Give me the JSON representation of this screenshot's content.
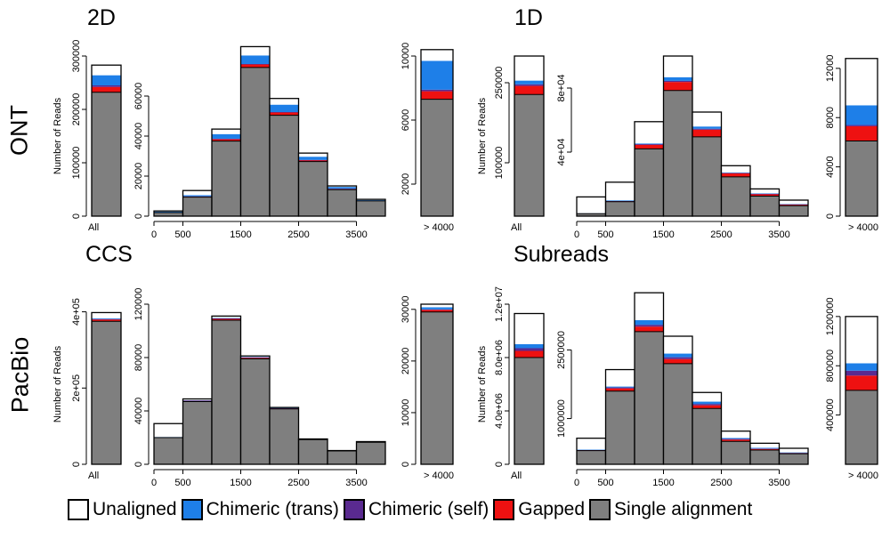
{
  "row_labels": [
    "ONT",
    "PacBio"
  ],
  "panel_titles": [
    "2D",
    "1D",
    "CCS",
    "Subreads"
  ],
  "legend": [
    {
      "label": "Unaligned",
      "color": "#ffffff"
    },
    {
      "label": "Chimeric (trans)",
      "color": "#1e7fe8"
    },
    {
      "label": "Chimeric (self)",
      "color": "#5a2a90"
    },
    {
      "label": "Gapped",
      "color": "#ee1111"
    },
    {
      "label": "Single alignment",
      "color": "#7f7f7f"
    }
  ],
  "chart_data": [
    {
      "panel": "2D",
      "row": "ONT",
      "type": "bar",
      "stacked": true,
      "ylabel": "Number of Reads",
      "subplots": [
        {
          "name": "all",
          "categories": [
            "All"
          ],
          "ylim": [
            0,
            300000
          ],
          "yticks": [
            "0",
            "100000",
            "200000",
            "300000"
          ],
          "bars": [
            {
              "single": 232000,
              "gapped": 10000,
              "chimeric_self": 3000,
              "chimeric_trans": 19000,
              "unaligned": 19000
            }
          ]
        },
        {
          "name": "length",
          "x_edges": [
            0,
            500,
            1000,
            1500,
            2000,
            2500,
            3000,
            3500,
            4000
          ],
          "xticks": [
            "0",
            "500",
            "1500",
            "2500",
            "3500"
          ],
          "ylim": [
            0,
            80000
          ],
          "yticks": [
            "0",
            "20000",
            "40000",
            "60000"
          ],
          "bars": [
            {
              "single": 1800,
              "gapped": 200,
              "chimeric_self": 0,
              "chimeric_trans": 300,
              "unaligned": 300
            },
            {
              "single": 9500,
              "gapped": 300,
              "chimeric_self": 100,
              "chimeric_trans": 600,
              "unaligned": 2300
            },
            {
              "single": 37500,
              "gapped": 900,
              "chimeric_self": 300,
              "chimeric_trans": 2300,
              "unaligned": 2500
            },
            {
              "single": 74300,
              "gapped": 1500,
              "chimeric_self": 200,
              "chimeric_trans": 4300,
              "unaligned": 4400
            },
            {
              "single": 50400,
              "gapped": 1400,
              "chimeric_self": 200,
              "chimeric_trans": 3700,
              "unaligned": 3100
            },
            {
              "single": 27300,
              "gapped": 700,
              "chimeric_self": 100,
              "chimeric_trans": 1600,
              "unaligned": 1800
            },
            {
              "single": 13200,
              "gapped": 400,
              "chimeric_self": 100,
              "chimeric_trans": 900,
              "unaligned": 500
            },
            {
              "single": 7600,
              "gapped": 200,
              "chimeric_self": 0,
              "chimeric_trans": 300,
              "unaligned": 300
            }
          ]
        },
        {
          "name": "long",
          "categories": [
            "> 4000"
          ],
          "ylim": [
            0,
            10000
          ],
          "yticks": [
            "2000",
            "6000",
            "10000"
          ],
          "bars": [
            {
              "single": 7300,
              "gapped": 500,
              "chimeric_self": 100,
              "chimeric_trans": 1800,
              "unaligned": 700
            }
          ]
        }
      ]
    },
    {
      "panel": "1D",
      "row": "ONT",
      "type": "bar",
      "stacked": true,
      "ylabel": "Number of Reads",
      "subplots": [
        {
          "name": "all",
          "categories": [
            "All"
          ],
          "ylim": [
            0,
            300000
          ],
          "yticks": [
            "100000",
            "250000"
          ],
          "bars": [
            {
              "single": 228000,
              "gapped": 16000,
              "chimeric_self": 3000,
              "chimeric_trans": 7000,
              "unaligned": 46000
            }
          ]
        },
        {
          "name": "length",
          "x_edges": [
            0,
            500,
            1000,
            1500,
            2000,
            2500,
            3000,
            3500,
            4000
          ],
          "xticks": [
            "0",
            "500",
            "1500",
            "2500",
            "3500"
          ],
          "ylim": [
            0,
            100000
          ],
          "yticks": [
            "4e+04",
            "8e+04"
          ],
          "bars": [
            {
              "single": 1500,
              "gapped": 200,
              "chimeric_self": 0,
              "chimeric_trans": 100,
              "unaligned": 10200
            },
            {
              "single": 9000,
              "gapped": 400,
              "chimeric_self": 100,
              "chimeric_trans": 400,
              "unaligned": 11300
            },
            {
              "single": 42000,
              "gapped": 2500,
              "chimeric_self": 500,
              "chimeric_trans": 400,
              "unaligned": 13600
            },
            {
              "single": 78500,
              "gapped": 5300,
              "chimeric_self": 700,
              "chimeric_trans": 2300,
              "unaligned": 13200
            },
            {
              "single": 49500,
              "gapped": 4500,
              "chimeric_self": 600,
              "chimeric_trans": 1400,
              "unaligned": 9000
            },
            {
              "single": 24500,
              "gapped": 2300,
              "chimeric_self": 200,
              "chimeric_trans": 300,
              "unaligned": 4200
            },
            {
              "single": 12500,
              "gapped": 1300,
              "chimeric_self": 100,
              "chimeric_trans": 300,
              "unaligned": 2800
            },
            {
              "single": 6500,
              "gapped": 800,
              "chimeric_self": 100,
              "chimeric_trans": 200,
              "unaligned": 2400
            }
          ]
        },
        {
          "name": "long",
          "categories": [
            "> 4000"
          ],
          "ylim": [
            0,
            13000
          ],
          "yticks": [
            "0",
            "4000",
            "8000",
            "12000"
          ],
          "bars": [
            {
              "single": 6100,
              "gapped": 1200,
              "chimeric_self": 100,
              "chimeric_trans": 1600,
              "unaligned": 3800
            }
          ]
        }
      ]
    },
    {
      "panel": "CCS",
      "row": "PacBio",
      "type": "bar",
      "stacked": true,
      "ylabel": "Number of Reads",
      "subplots": [
        {
          "name": "all",
          "categories": [
            "All"
          ],
          "ylim": [
            0,
            420000
          ],
          "yticks": [
            "0",
            "2e+05",
            "4e+05"
          ],
          "bars": [
            {
              "single": 375000,
              "gapped": 5000,
              "chimeric_self": 1000,
              "chimeric_trans": 2000,
              "unaligned": 15000
            }
          ]
        },
        {
          "name": "length",
          "x_edges": [
            0,
            500,
            1000,
            1500,
            2000,
            2500,
            3000,
            3500,
            4000
          ],
          "xticks": [
            "0",
            "500",
            "1500",
            "2500",
            "3500"
          ],
          "ylim": [
            0,
            120000
          ],
          "yticks": [
            "0",
            "40000",
            "80000",
            "120000"
          ],
          "bars": [
            {
              "single": 20000,
              "gapped": 300,
              "chimeric_self": 0,
              "chimeric_trans": 200,
              "unaligned": 10000
            },
            {
              "single": 47000,
              "gapped": 700,
              "chimeric_self": 100,
              "chimeric_trans": 300,
              "unaligned": 900
            },
            {
              "single": 108000,
              "gapped": 1200,
              "chimeric_self": 100,
              "chimeric_trans": 400,
              "unaligned": 1400
            },
            {
              "single": 79000,
              "gapped": 1000,
              "chimeric_self": 100,
              "chimeric_trans": 400,
              "unaligned": 700
            },
            {
              "single": 41500,
              "gapped": 500,
              "chimeric_self": 100,
              "chimeric_trans": 200,
              "unaligned": 300
            },
            {
              "single": 18500,
              "gapped": 200,
              "chimeric_self": 0,
              "chimeric_trans": 100,
              "unaligned": 200
            },
            {
              "single": 10000,
              "gapped": 100,
              "chimeric_self": 0,
              "chimeric_trans": 100,
              "unaligned": 100
            },
            {
              "single": 16500,
              "gapped": 200,
              "chimeric_self": 0,
              "chimeric_trans": 100,
              "unaligned": 200
            }
          ]
        },
        {
          "name": "long",
          "categories": [
            "> 4000"
          ],
          "ylim": [
            0,
            31000
          ],
          "yticks": [
            "0",
            "10000",
            "20000",
            "30000"
          ],
          "bars": [
            {
              "single": 29500,
              "gapped": 400,
              "chimeric_self": 100,
              "chimeric_trans": 400,
              "unaligned": 600
            }
          ]
        }
      ]
    },
    {
      "panel": "Subreads",
      "row": "PacBio",
      "type": "bar",
      "stacked": true,
      "ylabel": "Number of Reads",
      "subplots": [
        {
          "name": "all",
          "categories": [
            "All"
          ],
          "ylim": [
            0,
            12000000
          ],
          "yticks": [
            "0",
            "4.0e+06",
            "8.0e+06",
            "1.2e+07"
          ],
          "bars": [
            {
              "single": 8000000,
              "gapped": 500000,
              "chimeric_self": 200000,
              "chimeric_trans": 300000,
              "unaligned": 2300000
            }
          ]
        },
        {
          "name": "length",
          "x_edges": [
            0,
            500,
            1000,
            1500,
            2000,
            2500,
            3000,
            3500,
            4000
          ],
          "xticks": [
            "0",
            "500",
            "1500",
            "2500",
            "3500"
          ],
          "ylim": [
            0,
            3500000
          ],
          "yticks": [
            "1000000",
            "2500000"
          ],
          "bars": [
            {
              "single": 300000,
              "gapped": 10000,
              "chimeric_self": 5000,
              "chimeric_trans": 5000,
              "unaligned": 250000
            },
            {
              "single": 1600000,
              "gapped": 60000,
              "chimeric_self": 20000,
              "chimeric_trans": 20000,
              "unaligned": 370000
            },
            {
              "single": 2900000,
              "gapped": 110000,
              "chimeric_self": 40000,
              "chimeric_trans": 100000,
              "unaligned": 600000
            },
            {
              "single": 2200000,
              "gapped": 100000,
              "chimeric_self": 40000,
              "chimeric_trans": 80000,
              "unaligned": 380000
            },
            {
              "single": 1220000,
              "gapped": 70000,
              "chimeric_self": 30000,
              "chimeric_trans": 50000,
              "unaligned": 200000
            },
            {
              "single": 500000,
              "gapped": 40000,
              "chimeric_self": 15000,
              "chimeric_trans": 20000,
              "unaligned": 150000
            },
            {
              "single": 310000,
              "gapped": 25000,
              "chimeric_self": 10000,
              "chimeric_trans": 15000,
              "unaligned": 100000
            },
            {
              "single": 230000,
              "gapped": 15000,
              "chimeric_self": 5000,
              "chimeric_trans": 10000,
              "unaligned": 90000
            }
          ]
        },
        {
          "name": "long",
          "categories": [
            "> 4000"
          ],
          "ylim": [
            0,
            1300000
          ],
          "yticks": [
            "400000",
            "800000",
            "1200000"
          ],
          "bars": [
            {
              "single": 600000,
              "gapped": 120000,
              "chimeric_self": 40000,
              "chimeric_trans": 60000,
              "unaligned": 380000
            }
          ]
        }
      ]
    }
  ]
}
